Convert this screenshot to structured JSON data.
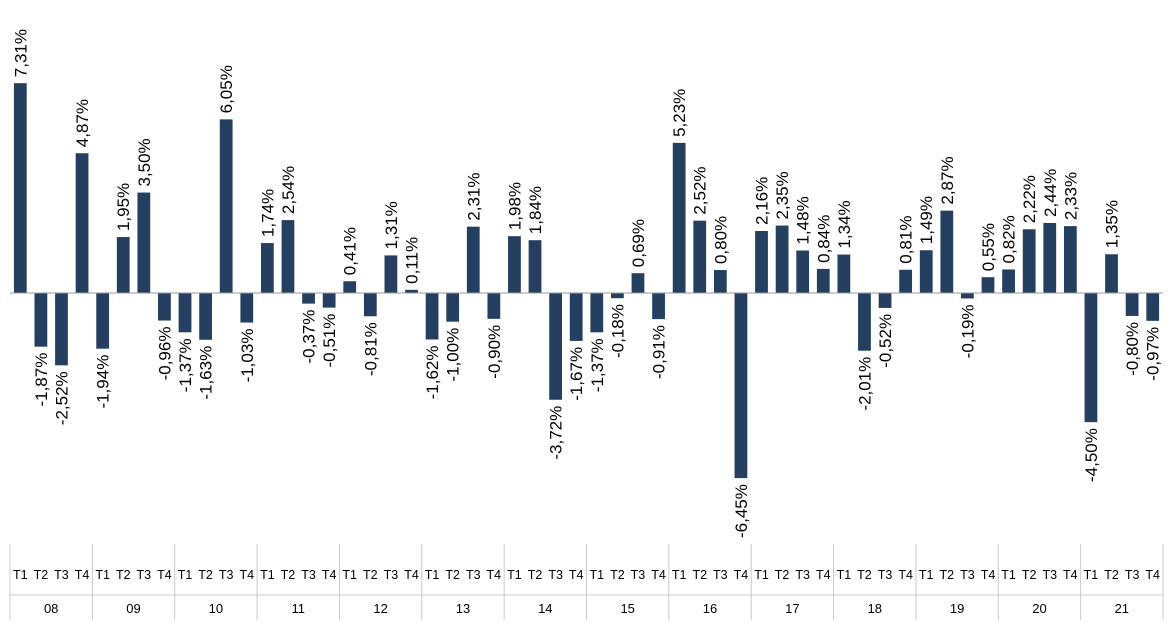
{
  "chart_data": {
    "type": "bar",
    "bar_color": "#243f60",
    "grid": false,
    "legend": "none",
    "ylim": [
      -7.2,
      7.8
    ],
    "quarters": [
      "T1",
      "T2",
      "T3",
      "T4"
    ],
    "years": [
      "08",
      "09",
      "10",
      "11",
      "12",
      "13",
      "14",
      "15",
      "16",
      "17",
      "18",
      "19",
      "20",
      "21"
    ],
    "values": [
      7.31,
      -1.87,
      -2.52,
      4.87,
      -1.94,
      1.95,
      3.5,
      -0.96,
      -1.37,
      -1.63,
      6.05,
      -1.03,
      1.74,
      2.54,
      -0.37,
      -0.51,
      0.41,
      -0.81,
      1.31,
      0.11,
      -1.62,
      -1.0,
      2.31,
      -0.9,
      1.98,
      1.84,
      -3.72,
      -1.67,
      -1.37,
      -0.18,
      0.69,
      -0.91,
      5.23,
      2.52,
      0.8,
      -6.45,
      2.16,
      2.35,
      1.48,
      0.84,
      1.34,
      -2.01,
      -0.52,
      0.81,
      1.49,
      2.87,
      -0.19,
      0.55,
      0.82,
      2.22,
      2.44,
      2.33,
      -4.5,
      1.35,
      -0.8,
      -0.97
    ],
    "data_labels": [
      "7,31%",
      "-1,87%",
      "-2,52%",
      "4,87%",
      "-1,94%",
      "1,95%",
      "3,50%",
      "-0,96%",
      "-1,37%",
      "-1,63%",
      "6,05%",
      "-1,03%",
      "1,74%",
      "2,54%",
      "-0,37%",
      "-0,51%",
      "0,41%",
      "-0,81%",
      "1,31%",
      "0,11%",
      "-1,62%",
      "-1,00%",
      "2,31%",
      "-0,90%",
      "1,98%",
      "1,84%",
      "-3,72%",
      "-1,67%",
      "-1,37%",
      "-0,18%",
      "0,69%",
      "-0,91%",
      "5,23%",
      "2,52%",
      "0,80%",
      "-6,45%",
      "2,16%",
      "2,35%",
      "1,48%",
      "0,84%",
      "1,34%",
      "-2,01%",
      "-0,52%",
      "0,81%",
      "1,49%",
      "2,87%",
      "-0,19%",
      "0,55%",
      "0,82%",
      "2,22%",
      "2,44%",
      "2,33%",
      "-4,50%",
      "1,35%",
      "-0,80%",
      "-0,97%"
    ]
  }
}
